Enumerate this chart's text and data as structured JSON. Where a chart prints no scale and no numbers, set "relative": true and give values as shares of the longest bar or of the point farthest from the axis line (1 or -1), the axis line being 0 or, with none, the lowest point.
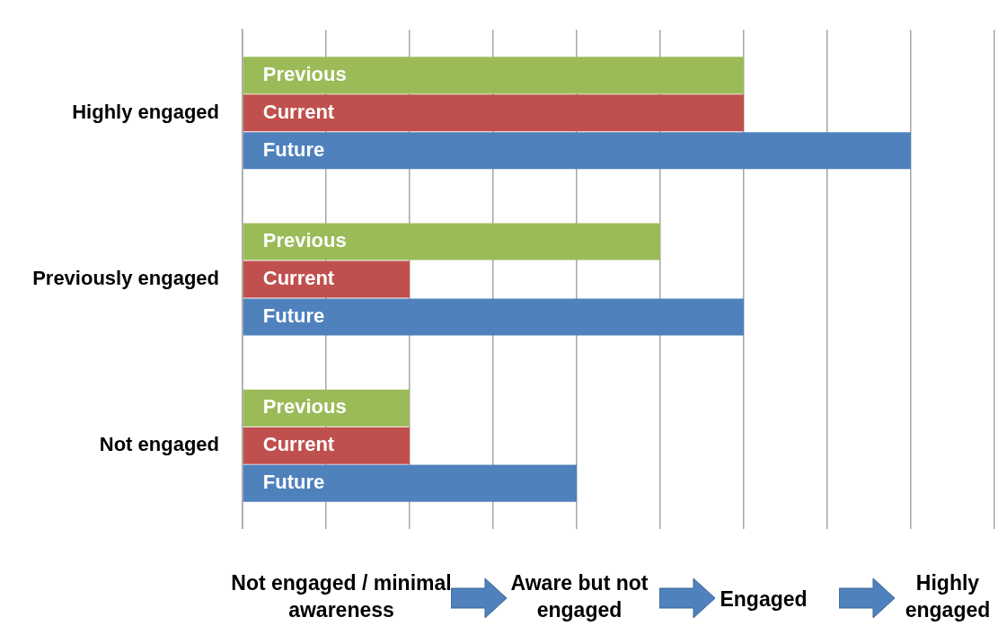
{
  "chart_data": {
    "type": "bar",
    "orientation": "horizontal",
    "relative": true,
    "grid": "x",
    "categories": [
      "Highly engaged",
      "Previously engaged",
      "Not engaged"
    ],
    "series": [
      {
        "name": "Previous",
        "color": "#9bbb59",
        "values": [
          0.75,
          0.625,
          0.25
        ]
      },
      {
        "name": "Current",
        "color": "#c0504d",
        "values": [
          0.75,
          0.25,
          0.25
        ]
      },
      {
        "name": "Future",
        "color": "#4f81bd",
        "values": [
          1,
          0.75,
          0.5
        ]
      }
    ],
    "annotations": [
      "Not engaged / minimal awareness",
      "Aware but not engaged",
      "Engaged",
      "Highly engaged"
    ]
  }
}
